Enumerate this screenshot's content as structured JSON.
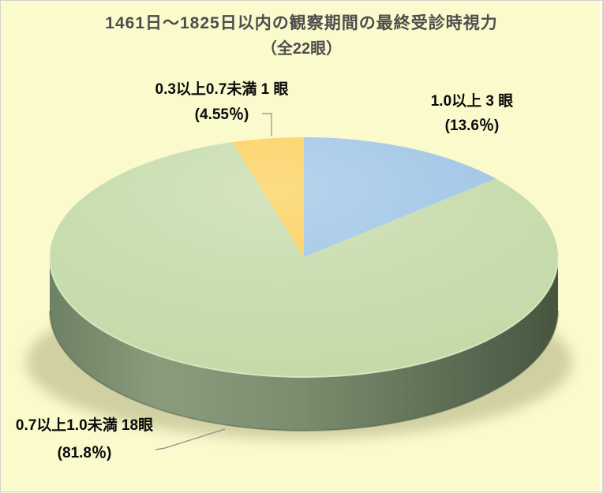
{
  "title": {
    "line1": "1461日〜1825日以内の観察期間の最終受診時視力",
    "line2": "（全22眼）"
  },
  "chart_data": {
    "type": "pie",
    "style": "3d-exploded-none",
    "title": "1461日〜1825日以内の観察期間の最終受診時視力（全22眼）",
    "total_eyes": 22,
    "start_angle_deg": 0,
    "clockwise": true,
    "legend": "none",
    "slices": [
      {
        "category": "1.0以上",
        "eyes": 3,
        "percent": 13.6,
        "color": "#9CC3E5",
        "label": {
          "line1": "1.0以上 3 眼",
          "line2": "(13.6％)"
        }
      },
      {
        "category": "0.7以上1.0未満",
        "eyes": 18,
        "percent": 81.8,
        "color": "#C4DAA8",
        "label": {
          "line1": "0.7以上1.0未満 18眼",
          "line2": "(81.8％)"
        }
      },
      {
        "category": "0.3以上0.7未満",
        "eyes": 1,
        "percent": 4.55,
        "color": "#FBCE55",
        "label": {
          "line1": "0.3以上0.7未満 1 眼",
          "line2": "(4.55％)"
        }
      }
    ]
  },
  "colors": {
    "background": "#FAFACD",
    "title_text": "#4D4D4D",
    "label_text": "#0A0A0A",
    "leader_line": "#8C8C8C",
    "border": "#D2D2D2",
    "rim_highlight": "#DCEECB",
    "rim_bottom_edge": "#4A5743",
    "shadow": "#7D7D4E",
    "side_gradient": [
      "#6F8164",
      "#8A9C7C",
      "#7A8C6D",
      "#5E6E55",
      "#47553F"
    ]
  }
}
